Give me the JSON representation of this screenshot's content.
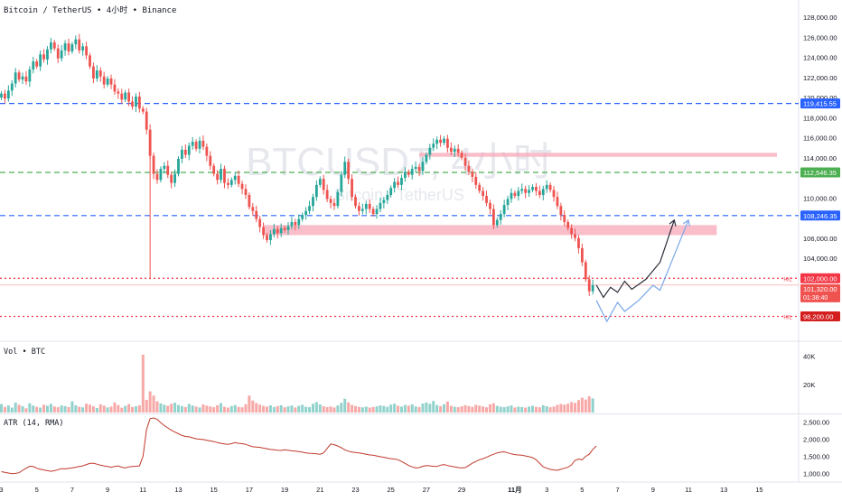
{
  "header": {
    "symbol_line": "Bitcoin / TetherUS • 4小时 • Binance",
    "watermark_main": "BTCUSDT, 4小时",
    "watermark_sub": "Bitcoin / TetherUS"
  },
  "colors": {
    "up": "#26a69a",
    "down": "#ef5350",
    "blue_line": "#2962ff",
    "green_line": "#4caf50",
    "red_line": "#f23645",
    "zone": "#f7a8b8",
    "projection_dark": "#2a2e39",
    "projection_light": "#7aa7e8",
    "atr": "#c0392b"
  },
  "chart_data": [
    {
      "type": "candlestick",
      "title": "Bitcoin / TetherUS • 4小时 • Binance",
      "ylim": [
        96000,
        129000
      ],
      "price_axis_labels": [
        "128,000.00",
        "126,000.00",
        "124,000.00",
        "122,000.00",
        "120,000.00",
        "118,000.00",
        "116,000.00",
        "114,000.00",
        "110,000.00",
        "106,000.00",
        "104,000.00",
        "100,000.00"
      ],
      "price_axis_values": [
        128000,
        126000,
        124000,
        122000,
        120000,
        118000,
        116000,
        114000,
        110000,
        106000,
        104000,
        100000
      ],
      "date_labels": [
        "3",
        "5",
        "7",
        "9",
        "11",
        "13",
        "15",
        "17",
        "19",
        "21",
        "23",
        "25",
        "27",
        "29",
        "11月",
        "3",
        "5",
        "7",
        "9",
        "11",
        "13",
        "15"
      ],
      "x_range": [
        0,
        208
      ],
      "date_positions": [
        0,
        10,
        20,
        30,
        40,
        50,
        60,
        70,
        80,
        90,
        100,
        110,
        120,
        130,
        145,
        154,
        164,
        174,
        184,
        194,
        204,
        214
      ],
      "closes": [
        120400,
        119900,
        120700,
        121400,
        122500,
        121800,
        122100,
        121600,
        122800,
        123600,
        123100,
        124300,
        123800,
        124800,
        125500,
        124900,
        123900,
        124700,
        125400,
        124600,
        125300,
        125800,
        124700,
        125100,
        124200,
        123100,
        121900,
        122700,
        122100,
        121300,
        121900,
        121300,
        120600,
        120400,
        119800,
        120500,
        119600,
        119100,
        120100,
        118900,
        118600,
        116800,
        114200,
        112400,
        111800,
        112900,
        113200,
        112300,
        111500,
        112400,
        113900,
        114800,
        114300,
        115200,
        115600,
        114900,
        115700,
        115100,
        114200,
        113200,
        112400,
        111800,
        112900,
        111500,
        111300,
        111800,
        112200,
        111400,
        110900,
        110300,
        109100,
        108700,
        107900,
        107100,
        106300,
        105800,
        106400,
        106900,
        106500,
        107000,
        106800,
        107200,
        107600,
        107300,
        107900,
        108300,
        108700,
        109200,
        110100,
        111300,
        111900,
        110800,
        109900,
        109500,
        109200,
        110600,
        112300,
        113600,
        111900,
        110100,
        109200,
        108700,
        108900,
        109400,
        108900,
        108400,
        108900,
        109500,
        109800,
        110300,
        111000,
        111600,
        111300,
        112000,
        112600,
        112300,
        112900,
        113100,
        112700,
        113600,
        114300,
        115000,
        115400,
        115800,
        115500,
        115900,
        115000,
        114600,
        114900,
        114500,
        114000,
        113200,
        112600,
        112100,
        111300,
        110700,
        110200,
        109500,
        108900,
        107300,
        107800,
        108400,
        109300,
        109900,
        110500,
        110200,
        110700,
        110900,
        110500,
        110800,
        111100,
        110700,
        110300,
        110900,
        111300,
        110800,
        110100,
        109200,
        108300,
        107600,
        107000,
        106400,
        106000,
        105000,
        103600,
        101900,
        100700,
        101320
      ],
      "projections": [
        {
          "name": "",
          "points": [
            [
              168,
              101320
            ],
            [
              170,
              100100
            ],
            [
              172,
              101100
            ],
            [
              174,
              100600
            ],
            [
              176,
              101700
            ],
            [
              178,
              100900
            ],
            [
              182,
              101900
            ],
            [
              186,
              103600
            ],
            [
              190,
              107800
            ]
          ]
        },
        {
          "name": "",
          "points": [
            [
              168,
              99800
            ],
            [
              171,
              97700
            ],
            [
              174,
              99600
            ],
            [
              176,
              98700
            ],
            [
              180,
              99800
            ],
            [
              184,
              101300
            ],
            [
              186,
              100800
            ],
            [
              190,
              104300
            ],
            [
              194,
              107800
            ]
          ]
        }
      ],
      "annotations": [
        {
          "label": "119,415.55",
          "price": 119415.55,
          "color": "#2962ff",
          "style": "dashed"
        },
        {
          "label": "112,546.35",
          "price": 112546.35,
          "color": "#4caf50",
          "style": "dashed"
        },
        {
          "label": "108,246.35",
          "price": 108246.35,
          "color": "#2962ff",
          "style": "dashed"
        },
        {
          "label": "102,000.00",
          "price": 102000,
          "color": "#f23645",
          "style": "dotted",
          "tag": "H/L"
        },
        {
          "label": "98,200.00",
          "price": 98200,
          "color": "#f23645",
          "style": "dotted",
          "tag": "H/L"
        }
      ],
      "last_price": {
        "label": "101,320.00",
        "countdown": "01:38:40",
        "price": 101320
      },
      "zones": [
        {
          "from_x": 74,
          "to_x": 202,
          "low": 106300,
          "high": 107300
        },
        {
          "from_x": 118,
          "to_x": 219,
          "low": 114100,
          "high": 114500
        }
      ],
      "wick_spike": {
        "x": 42,
        "low": 101900
      }
    },
    {
      "type": "bar",
      "title": "Vol • BTC",
      "axis_labels": [
        "40K",
        "20K"
      ],
      "axis_values": [
        40000,
        20000
      ],
      "ylim": [
        0,
        48000
      ],
      "values": [
        6000,
        4000,
        5000,
        3500,
        7000,
        5500,
        4500,
        3000,
        6500,
        5000,
        4000,
        3500,
        5500,
        4800,
        6200,
        4300,
        3800,
        5000,
        4600,
        3900,
        8000,
        5200,
        4100,
        3700,
        6300,
        5600,
        4400,
        3200,
        5800,
        4900,
        3600,
        4200,
        7100,
        5300,
        3400,
        4700,
        6000,
        3900,
        4500,
        5100,
        41000,
        9000,
        15000,
        12000,
        8000,
        6500,
        5500,
        4800,
        6200,
        7000,
        5400,
        4600,
        3900,
        6100,
        5000,
        4200,
        3600,
        5700,
        4900,
        4300,
        3800,
        5200,
        6700,
        4100,
        3500,
        4600,
        5300,
        4000,
        3700,
        5900,
        12000,
        8500,
        6800,
        5600,
        4700,
        4200,
        5100,
        3900,
        4600,
        5200,
        3700,
        4400,
        5000,
        3600,
        4800,
        5500,
        4100,
        3800,
        6200,
        7400,
        5800,
        4500,
        3900,
        4300,
        3600,
        5000,
        6900,
        9800,
        7200,
        5400,
        4600,
        4000,
        3700,
        4200,
        3500,
        3900,
        4400,
        5100,
        4700,
        4100,
        5600,
        6300,
        4800,
        4200,
        5400,
        4900,
        5800,
        4300,
        3900,
        6400,
        7100,
        6200,
        8200,
        5300,
        4500,
        5900,
        7800,
        4800,
        4100,
        3800,
        4400,
        5200,
        4600,
        4000,
        5500,
        4900,
        4300,
        3700,
        5800,
        6600,
        4700,
        4100,
        3800,
        4400,
        5000,
        3600,
        4200,
        3900,
        3500,
        4300,
        4800,
        4000,
        3700,
        5100,
        4500,
        3800,
        4200,
        5400,
        6100,
        5600,
        6300,
        7400,
        6800,
        8800,
        10500,
        9200,
        11500,
        10000
      ]
    },
    {
      "type": "line",
      "title": "ATR (14, RMA)",
      "axis_labels": [
        "2,500.00",
        "2,000.00",
        "1,500.00",
        "1,000.00"
      ],
      "axis_values": [
        2500,
        2000,
        1500,
        1000
      ],
      "ylim": [
        800,
        2700
      ],
      "values": [
        1050,
        1030,
        1010,
        990,
        1000,
        1020,
        1090,
        1150,
        1210,
        1200,
        1150,
        1120,
        1100,
        1080,
        1060,
        1080,
        1110,
        1140,
        1130,
        1150,
        1160,
        1180,
        1200,
        1220,
        1260,
        1290,
        1300,
        1270,
        1240,
        1220,
        1200,
        1180,
        1200,
        1220,
        1180,
        1160,
        1190,
        1200,
        1210,
        1220,
        1500,
        2280,
        2600,
        2620,
        2580,
        2480,
        2400,
        2330,
        2260,
        2210,
        2160,
        2110,
        2080,
        2070,
        2040,
        2010,
        2000,
        1990,
        1970,
        1950,
        1930,
        1900,
        1880,
        1860,
        1850,
        1870,
        1900,
        1880,
        1870,
        1850,
        1810,
        1780,
        1770,
        1760,
        1740,
        1720,
        1700,
        1690,
        1680,
        1670,
        1690,
        1680,
        1660,
        1650,
        1640,
        1620,
        1600,
        1590,
        1580,
        1570,
        1560,
        1600,
        1730,
        1860,
        1840,
        1800,
        1750,
        1690,
        1650,
        1620,
        1610,
        1600,
        1580,
        1560,
        1540,
        1530,
        1510,
        1490,
        1470,
        1450,
        1430,
        1420,
        1400,
        1350,
        1290,
        1230,
        1190,
        1160,
        1170,
        1210,
        1230,
        1220,
        1210,
        1200,
        1240,
        1260,
        1230,
        1210,
        1190,
        1170,
        1160,
        1170,
        1230,
        1300,
        1350,
        1400,
        1430,
        1470,
        1520,
        1560,
        1600,
        1620,
        1630,
        1600,
        1570,
        1550,
        1540,
        1530,
        1510,
        1490,
        1460,
        1400,
        1300,
        1190,
        1150,
        1120,
        1100,
        1090,
        1120,
        1150,
        1180,
        1250,
        1380,
        1420,
        1400,
        1500,
        1560,
        1700,
        1800
      ]
    }
  ]
}
